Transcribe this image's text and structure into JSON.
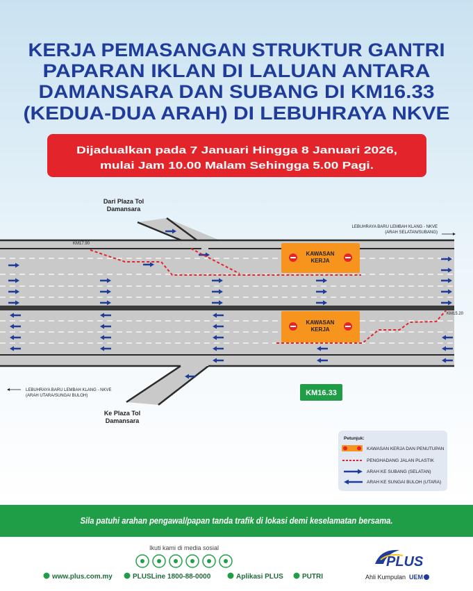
{
  "header": {
    "title_lines": [
      "KERJA PEMASANGAN STRUKTUR GANTRI",
      "PAPARAN IKLAN DI LALUAN ANTARA",
      "DAMANSARA DAN SUBANG DI KM16.33",
      "(KEDUA-DUA ARAH) DI LEBUHRAYA NKVE"
    ]
  },
  "schedule": {
    "lines": [
      "Dijadualkan pada 7 Januari Hingga 8 Januari 2026,",
      "mulai Jam 10.00 Malam Sehingga 5.00 Pagi."
    ]
  },
  "diagram": {
    "ramp_in": [
      "Dari Plaza Tol",
      "Damansara"
    ],
    "southbound": [
      "LEBUHRAYA BARU LEMBAH KLANG - NKVE",
      "(ARAH SELATAN/SUBANG)"
    ],
    "km_start": "KM17.90",
    "work_zone_upper": [
      "KAWASAN",
      "KERJA"
    ],
    "work_zone_lower": [
      "KAWASAN",
      "KERJA"
    ],
    "km_end": "KM15.20",
    "northbound": [
      "LEBUHRAYA BARU LEMBAH KLANG - NKVE",
      "(ARAH UTARA/SUNGAI BULOH)"
    ],
    "ramp_out": [
      "Ke Plaza Tol",
      "Damansara"
    ],
    "gantry_sign": "KM16.33"
  },
  "legend": {
    "title": "Petunjuk:",
    "items": [
      "KAWASAN KERJA DAN PENUTUPAN",
      "PENGHADANG JALAN PLASTIK",
      "ARAH KE SUBANG (SELATAN)",
      "ARAH KE SUNGAI BULOH (UTARA)"
    ]
  },
  "notice": "Sila patuhi arahan pengawal/papan tanda trafik di lokasi demi keselamatan bersama.",
  "footer": {
    "social_heading": "Ikuti kami di media sosial",
    "links": [
      "www.plus.com.my",
      "PLUSLine 1800-88-0000",
      "Aplikasi PLUS",
      "PUTRI"
    ],
    "brand": "PLUS",
    "group": "Ahli Kumpulan",
    "group_name": "UEM"
  }
}
